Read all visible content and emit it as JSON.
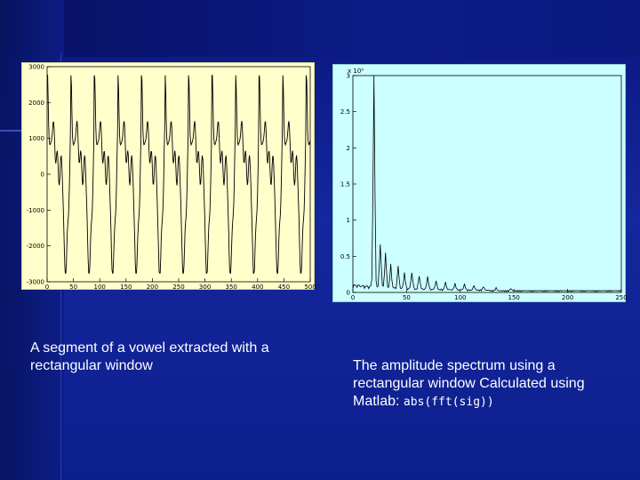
{
  "captions": {
    "left": "A segment of a vowel extracted with a rectangular window",
    "right_text": "The amplitude spectrum using a rectangular window Calculated using Matlab: ",
    "right_code": "abs(fft(sig))"
  },
  "waveform_plot": {
    "yticks": [
      "3000",
      "2000",
      "1000",
      "0",
      "-1000",
      "-2000",
      "-3000"
    ],
    "xticks": [
      "0",
      "50",
      "100",
      "150",
      "200",
      "250",
      "300",
      "350",
      "400",
      "450",
      "500"
    ],
    "colors": {
      "background": "#ffffcc",
      "line": "#000000"
    }
  },
  "spectrum_plot": {
    "exponent_label": "x 10⁵",
    "yticks": [
      "3",
      "2.5",
      "2",
      "1.5",
      "1",
      "0.5",
      "0"
    ],
    "xticks": [
      "0",
      "50",
      "100",
      "150",
      "200",
      "250"
    ],
    "colors": {
      "background": "#ccffff",
      "line": "#000000"
    }
  }
}
